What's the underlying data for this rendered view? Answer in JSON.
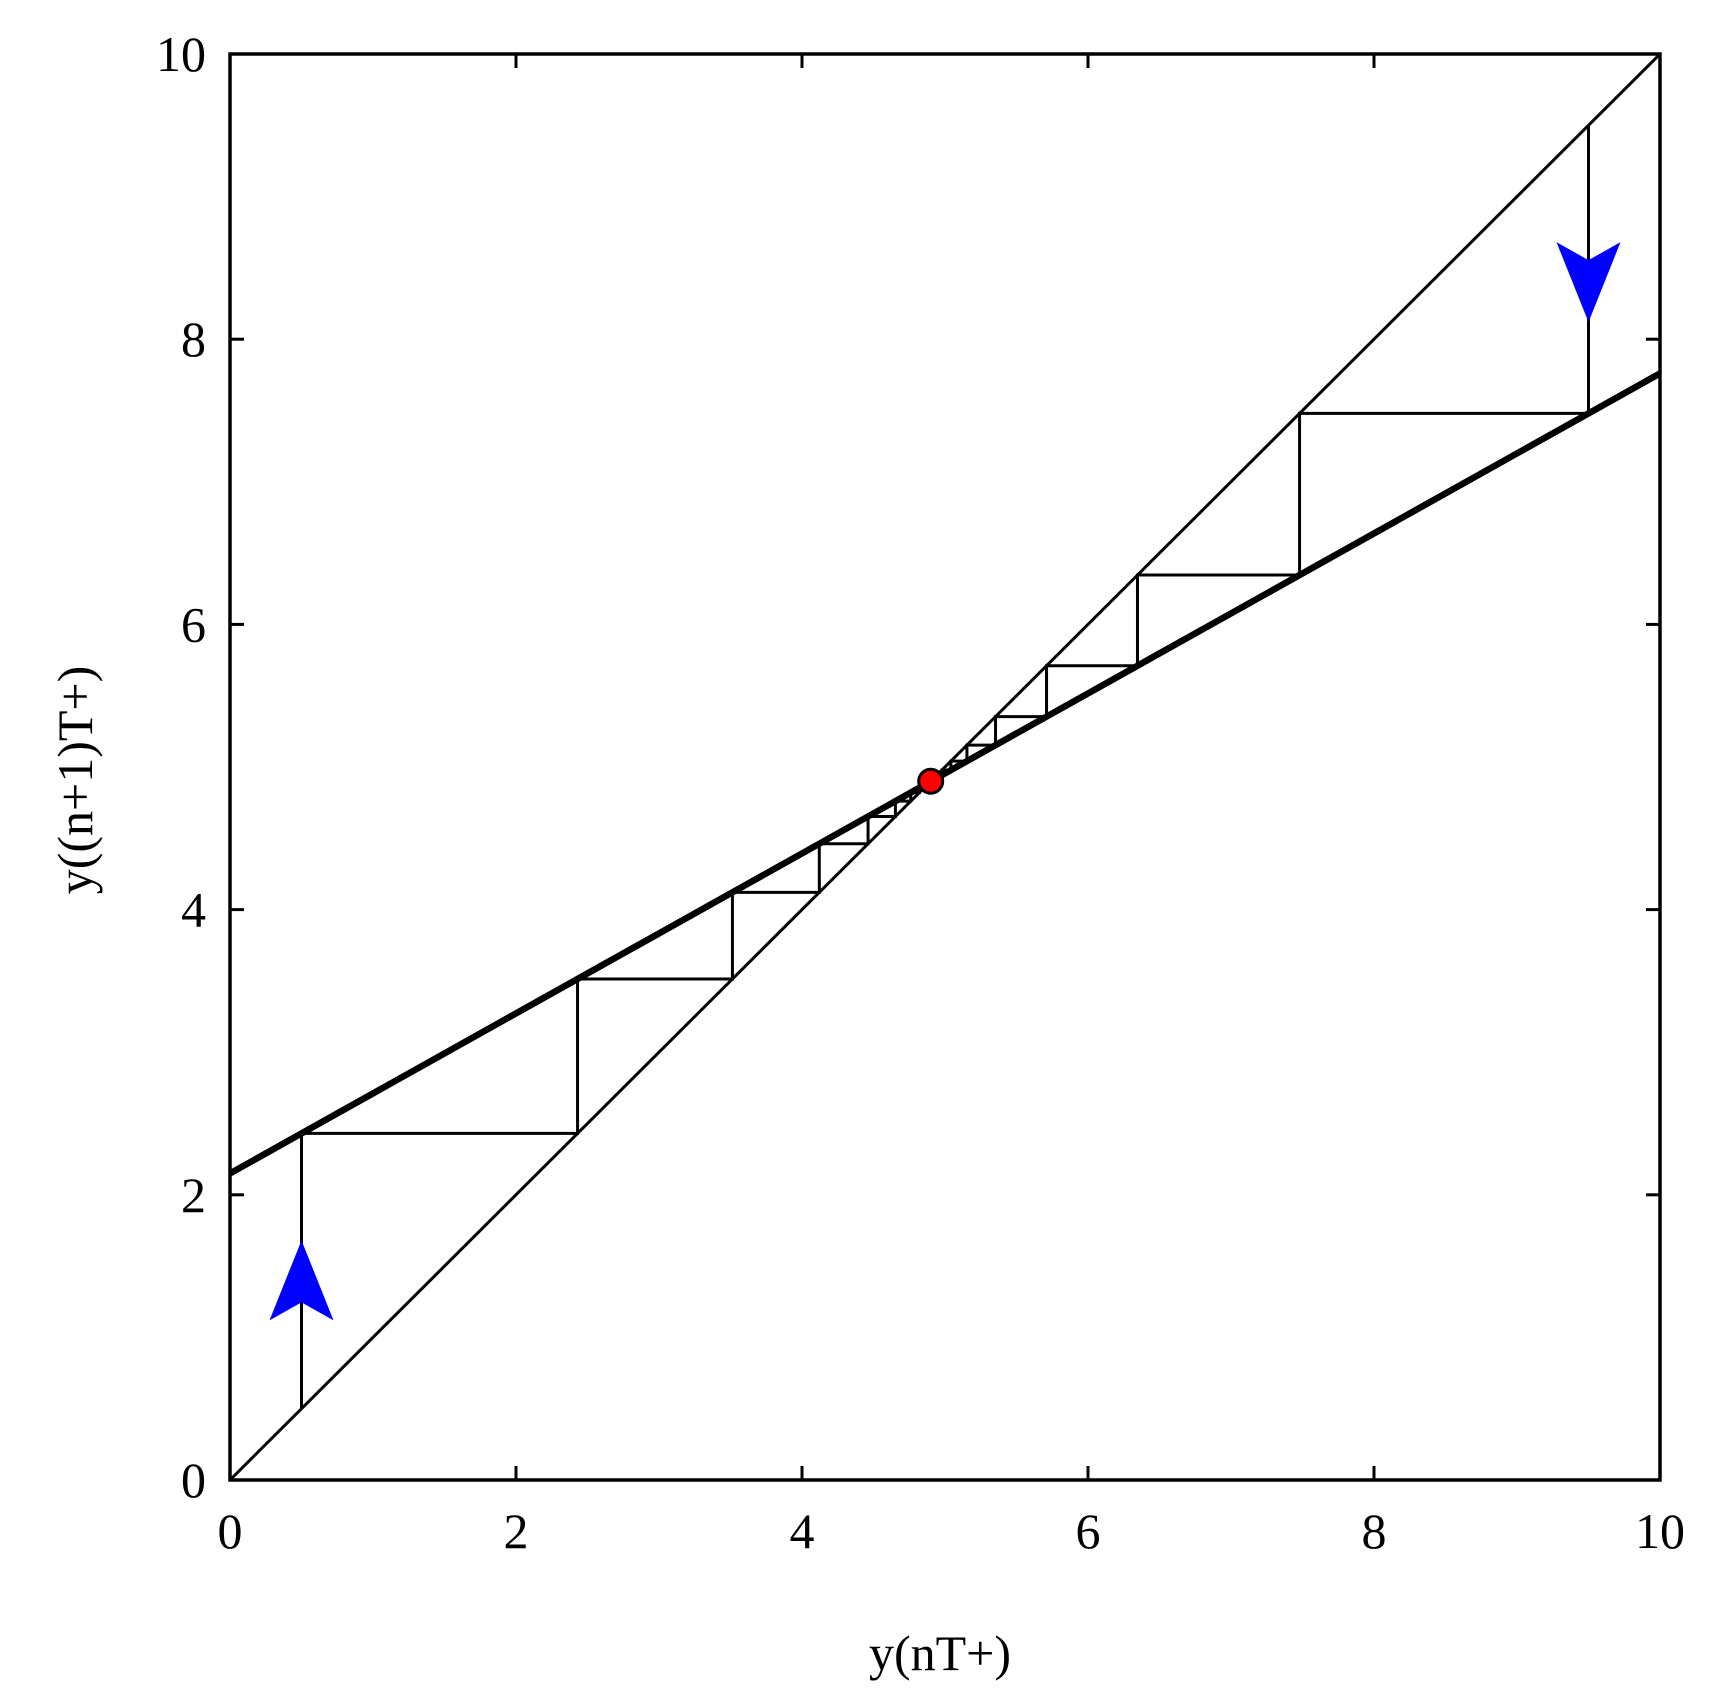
{
  "chart_data": {
    "type": "line",
    "title": "",
    "xlabel": "y(nT+)",
    "ylabel": "y((n+1)T+)",
    "xlim": [
      0,
      10
    ],
    "ylim": [
      0,
      10
    ],
    "x_ticks": [
      0,
      2,
      4,
      6,
      8,
      10
    ],
    "y_ticks": [
      0,
      2,
      4,
      6,
      8,
      10
    ],
    "grid": false,
    "legend": "none",
    "series": [
      {
        "style": "thin",
        "x": [
          0,
          10
        ],
        "y": [
          0,
          10
        ]
      },
      {
        "style": "thick",
        "x": [
          0,
          10
        ],
        "y": [
          2.15,
          7.76
        ]
      }
    ],
    "cobweb_start_points": [
      0.5,
      9.5
    ],
    "fixed_point": {
      "x": 4.9,
      "y": 4.9,
      "color": "#ff0000"
    },
    "arrows": [
      {
        "x": 0.5,
        "y": 1.4,
        "direction": "up",
        "color": "#0000ff"
      },
      {
        "x": 9.5,
        "y": 8.4,
        "direction": "down",
        "color": "#0000ff"
      }
    ]
  }
}
